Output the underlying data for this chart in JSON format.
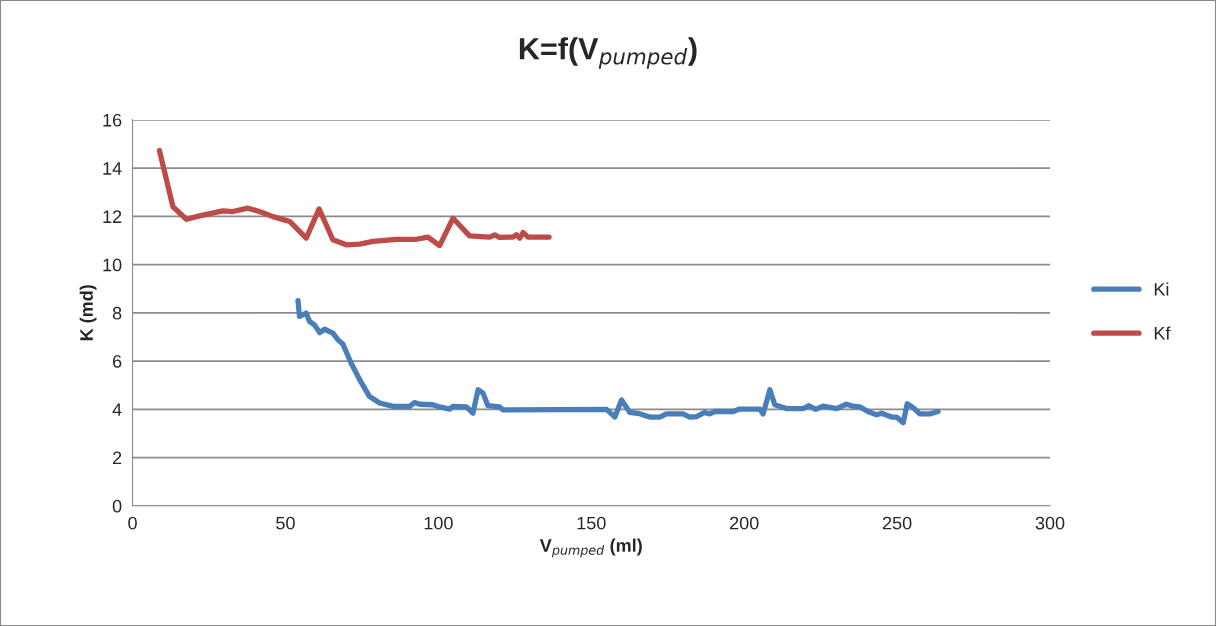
{
  "chart_data": {
    "type": "line",
    "title": "K=f(V$_{pumped}$)",
    "xlabel": "V$_{pumped}$ (ml)",
    "ylabel": "K (md)",
    "xlim": [
      0,
      300
    ],
    "xticks": [
      0,
      50,
      100,
      150,
      200,
      250,
      300
    ],
    "ylim": [
      0,
      16
    ],
    "yticks": [
      0,
      2,
      4,
      6,
      8,
      10,
      12,
      14,
      16
    ],
    "grid": "y",
    "legend": "right",
    "marker": "none",
    "line_style": "solid",
    "series": [
      {
        "name": "Ki",
        "color": "#4a7ebb",
        "x": [
          54.1,
          54.6,
          56.8,
          57.9,
          59.5,
          61.2,
          62.8,
          65.5,
          67.2,
          68.8,
          71.5,
          74.3,
          77.5,
          80.8,
          85.2,
          90.6,
          92.2,
          93.9,
          98.2,
          100.4,
          103.7,
          104.8,
          109.2,
          111.3,
          113.0,
          114.6,
          116.2,
          120.0,
          121.1,
          155.0,
          157.7,
          159.9,
          162.6,
          165.8,
          169.1,
          172.4,
          174.6,
          180.0,
          182.2,
          184.4,
          187.1,
          188.7,
          190.4,
          196.4,
          198.5,
          205.1,
          206.2,
          208.4,
          210.0,
          213.8,
          219.3,
          221.2,
          223.4,
          225.8,
          230.2,
          233.4,
          235.6,
          237.8,
          240.5,
          243.3,
          244.9,
          248.2,
          249.8,
          252.0,
          253.3,
          255.3,
          257.4,
          260.7,
          263.4
        ],
        "values": [
          8.51,
          7.85,
          7.99,
          7.64,
          7.5,
          7.18,
          7.32,
          7.16,
          6.88,
          6.7,
          5.91,
          5.22,
          4.53,
          4.26,
          4.12,
          4.12,
          4.28,
          4.21,
          4.19,
          4.1,
          4.01,
          4.12,
          4.1,
          3.84,
          4.81,
          4.67,
          4.15,
          4.1,
          3.98,
          4.0,
          3.68,
          4.39,
          3.87,
          3.82,
          3.68,
          3.68,
          3.81,
          3.81,
          3.68,
          3.7,
          3.87,
          3.81,
          3.91,
          3.91,
          4.01,
          4.01,
          3.81,
          4.81,
          4.19,
          4.03,
          4.03,
          4.15,
          4.0,
          4.13,
          4.03,
          4.21,
          4.13,
          4.1,
          3.91,
          3.77,
          3.84,
          3.68,
          3.68,
          3.45,
          4.23,
          4.07,
          3.81,
          3.81,
          3.91
        ]
      },
      {
        "name": "Kf",
        "color": "#be4b48",
        "x": [
          8.8,
          13.2,
          17.6,
          21.9,
          29.5,
          32.8,
          37.7,
          41.5,
          45.9,
          51.4,
          56.8,
          61.0,
          65.5,
          69.9,
          74.3,
          78.6,
          86.3,
          92.8,
          96.6,
          100.4,
          104.8,
          110.2,
          116.8,
          118.4,
          120.0,
          124.4,
          125.5,
          126.6,
          127.7,
          129.3,
          136.2
        ],
        "values": [
          14.73,
          12.4,
          11.88,
          12.02,
          12.23,
          12.2,
          12.34,
          12.2,
          11.99,
          11.79,
          11.1,
          12.31,
          11.03,
          10.82,
          10.85,
          10.96,
          11.05,
          11.05,
          11.14,
          10.79,
          11.92,
          11.19,
          11.14,
          11.23,
          11.13,
          11.14,
          11.24,
          11.1,
          11.33,
          11.14,
          11.14
        ]
      }
    ]
  }
}
